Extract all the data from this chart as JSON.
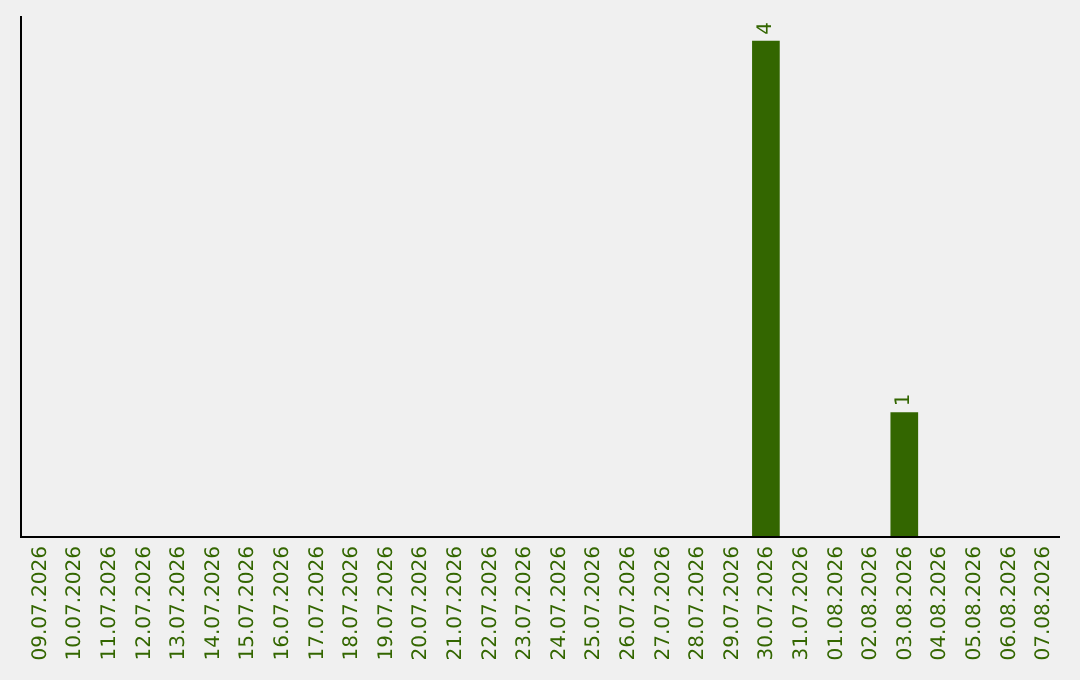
{
  "chart_data": {
    "type": "bar",
    "categories": [
      "09.07.2026",
      "10.07.2026",
      "11.07.2026",
      "12.07.2026",
      "13.07.2026",
      "14.07.2026",
      "15.07.2026",
      "16.07.2026",
      "17.07.2026",
      "18.07.2026",
      "19.07.2026",
      "20.07.2026",
      "21.07.2026",
      "22.07.2026",
      "23.07.2026",
      "24.07.2026",
      "25.07.2026",
      "26.07.2026",
      "27.07.2026",
      "28.07.2026",
      "29.07.2026",
      "30.07.2026",
      "31.07.2026",
      "01.08.2026",
      "02.08.2026",
      "03.08.2026",
      "04.08.2026",
      "05.08.2026",
      "06.08.2026",
      "07.08.2026"
    ],
    "values": [
      null,
      null,
      null,
      null,
      null,
      null,
      null,
      null,
      null,
      null,
      null,
      null,
      null,
      null,
      null,
      null,
      null,
      null,
      null,
      null,
      null,
      4,
      null,
      null,
      null,
      1,
      null,
      null,
      null,
      null
    ],
    "data_labels": true,
    "color": "#336600"
  }
}
